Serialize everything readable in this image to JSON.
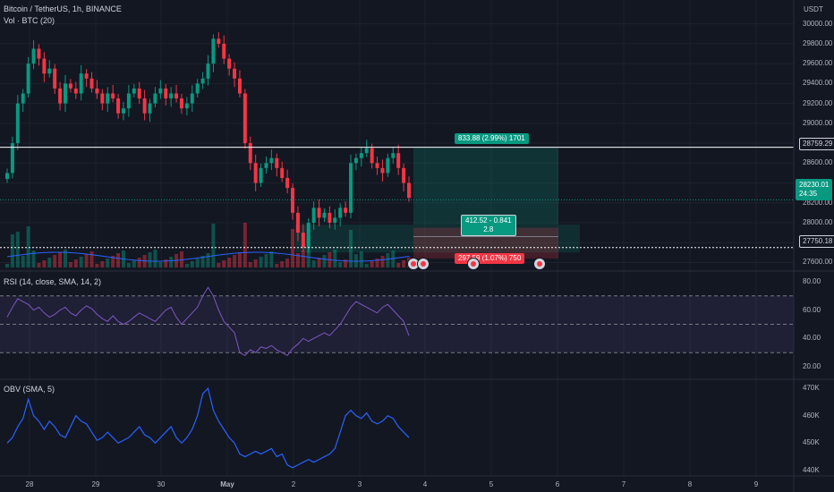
{
  "legend": {
    "symbol_title": "Bitcoin / TetherUS, 1h, BINANCE",
    "volume_label": "Vol · BTC (20)",
    "rsi_label": "RSI (14, close, SMA, 14, 2)",
    "obv_label": "OBV (SMA, 5)"
  },
  "price_axis": {
    "currency": "USDT",
    "ticks": [
      "30000.00",
      "29800.00",
      "29600.00",
      "29400.00",
      "29200.00",
      "29000.00",
      "28800.00",
      "28600.00",
      "28400.00",
      "28200.00",
      "28000.00",
      "27800.00",
      "27600.00"
    ],
    "last_price": "28230.01",
    "countdown": "24:35",
    "resistance_label": "28759.29",
    "support_label": "27750.18"
  },
  "rsi_axis": {
    "ticks": [
      "80.00",
      "60.00",
      "40.00",
      "20.00"
    ]
  },
  "obv_axis": {
    "ticks": [
      "470K",
      "460K",
      "450K",
      "440K"
    ]
  },
  "time_axis": {
    "ticks": [
      "28",
      "29",
      "30",
      "May",
      "2",
      "3",
      "4",
      "5",
      "6",
      "7",
      "8",
      "9"
    ]
  },
  "position_tool": {
    "target_label": "833.88 (2.99%) 1701",
    "mid_label_line1": "412.52 - 0.841",
    "mid_label_line2": "2.8",
    "stop_label": "297.59 (1.07%) 750"
  },
  "events": [
    "flag-icon",
    "flag-icon",
    "flag-icon",
    "flag-icon"
  ],
  "chart_data": {
    "type": "candlestick",
    "symbol": "Bitcoin / TetherUS",
    "interval": "1h",
    "exchange": "BINANCE",
    "ylim": [
      27550,
      30150
    ],
    "levels": {
      "resistance": 28759.29,
      "support": 27750.18,
      "last": 28230.01
    },
    "price_path": [
      28500,
      28800,
      29200,
      29300,
      29600,
      29750,
      29650,
      29500,
      29550,
      29350,
      29200,
      29400,
      29350,
      29300,
      29500,
      29450,
      29350,
      29300,
      29200,
      29300,
      29250,
      29100,
      29150,
      29300,
      29350,
      29250,
      29100,
      29200,
      29300,
      29350,
      29250,
      29300,
      29250,
      29150,
      29200,
      29300,
      29400,
      29450,
      29600,
      29850,
      29800,
      29650,
      29550,
      29450,
      29300,
      28800,
      28600,
      28400,
      28550,
      28600,
      28650,
      28550,
      28450,
      28350,
      28100,
      27900,
      27750,
      28000,
      28150,
      28050,
      28100,
      28000,
      28050,
      28150,
      28100,
      28600,
      28650,
      28700,
      28750,
      28600,
      28550,
      28500,
      28650,
      28700,
      28550,
      28400,
      28250
    ],
    "rsi": [
      55,
      62,
      68,
      66,
      64,
      60,
      62,
      58,
      55,
      57,
      60,
      62,
      58,
      56,
      60,
      63,
      61,
      57,
      54,
      52,
      56,
      52,
      50,
      52,
      55,
      58,
      56,
      54,
      52,
      56,
      60,
      62,
      55,
      50,
      54,
      58,
      62,
      70,
      76,
      70,
      60,
      52,
      48,
      44,
      30,
      28,
      32,
      30,
      34,
      33,
      35,
      32,
      30,
      28,
      33,
      36,
      40,
      38,
      40,
      42,
      44,
      42,
      46,
      50,
      56,
      62,
      66,
      64,
      62,
      60,
      58,
      62,
      64,
      60,
      56,
      52,
      42
    ],
    "obv": [
      450,
      452,
      456,
      459,
      466,
      460,
      458,
      455,
      458,
      456,
      453,
      452,
      456,
      460,
      458,
      457,
      454,
      451,
      452,
      454,
      452,
      450,
      451,
      452,
      454,
      456,
      453,
      452,
      450,
      452,
      454,
      456,
      452,
      450,
      452,
      455,
      460,
      468,
      470,
      462,
      458,
      455,
      452,
      450,
      446,
      445,
      446,
      447,
      446,
      447,
      448,
      445,
      446,
      442,
      441,
      442,
      443,
      444,
      443,
      444,
      445,
      446,
      448,
      454,
      460,
      462,
      460,
      459,
      461,
      458,
      457,
      458,
      460,
      459,
      456,
      454,
      452
    ],
    "rsi_bands": [
      70,
      50,
      30
    ],
    "rsi_ylim": [
      15,
      85
    ],
    "obv_ylim": [
      438000,
      472000
    ]
  }
}
